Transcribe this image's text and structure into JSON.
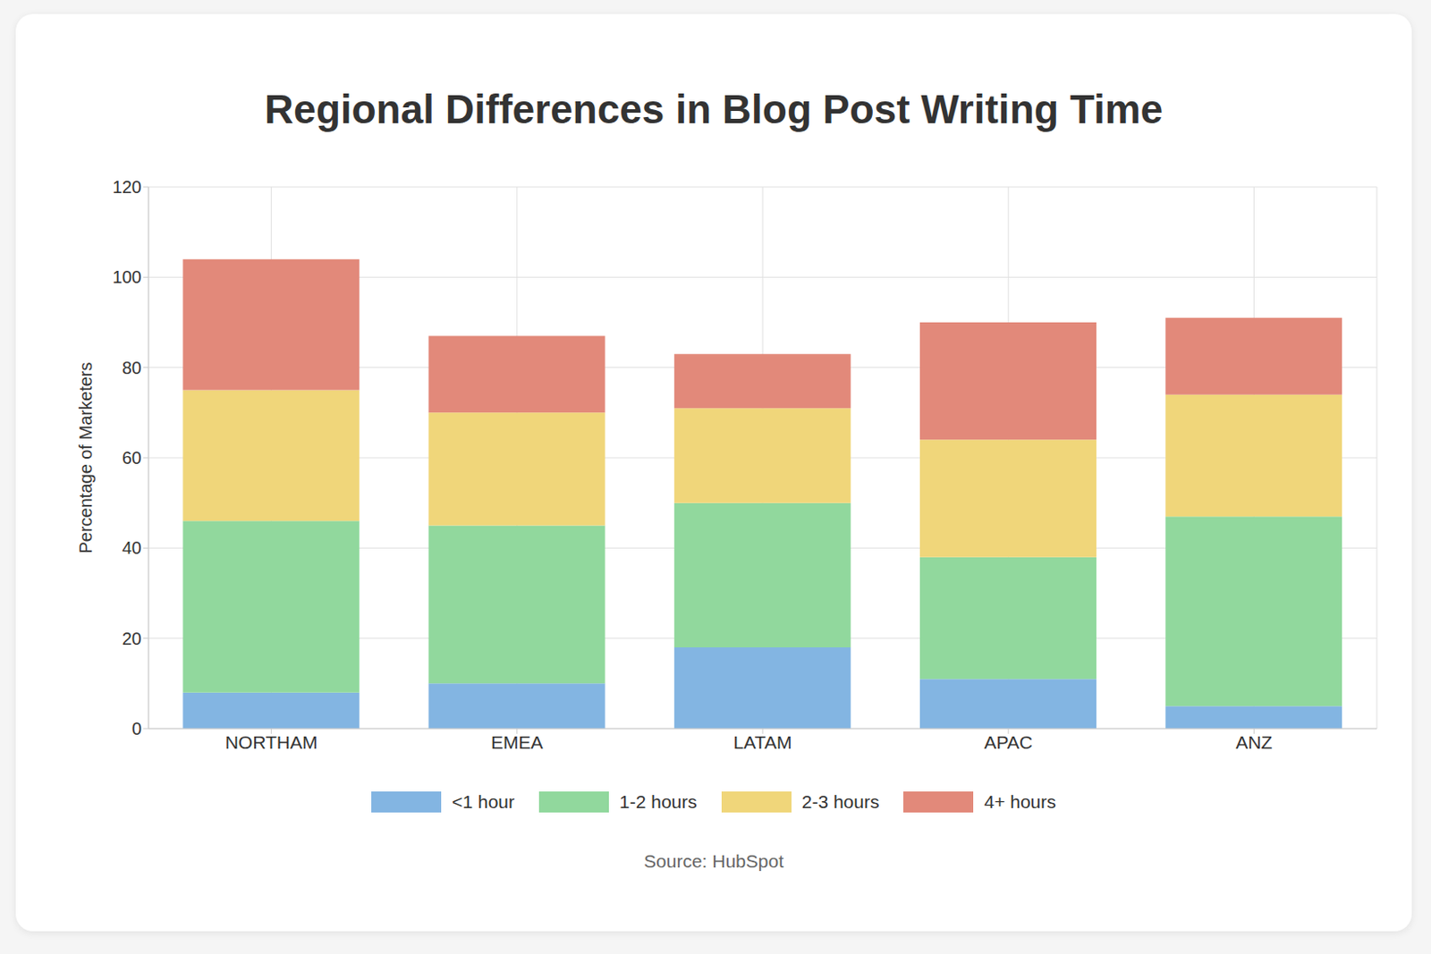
{
  "chart_data": {
    "type": "bar",
    "title": "Regional Differences in Blog Post Writing Time",
    "y_label": "Percentage of Marketers",
    "source": "Source: HubSpot",
    "categories": [
      "NORTHAM",
      "EMEA",
      "LATAM",
      "APAC",
      "ANZ"
    ],
    "series": [
      {
        "name": "<1 hour",
        "color": "#83b5e2",
        "values": [
          8,
          10,
          18,
          11,
          5
        ]
      },
      {
        "name": "1-2 hours",
        "color": "#91d89d",
        "values": [
          38,
          35,
          32,
          27,
          42
        ]
      },
      {
        "name": "2-3 hours",
        "color": "#f0d67a",
        "values": [
          29,
          25,
          21,
          26,
          27
        ]
      },
      {
        "name": "4+ hours",
        "color": "#e2897a",
        "values": [
          29,
          17,
          12,
          26,
          17
        ]
      }
    ],
    "ylim": [
      0,
      120
    ],
    "yticks": [
      0,
      20,
      40,
      60,
      80,
      100,
      120
    ],
    "stacked": true,
    "grid": true,
    "legend": "bottom"
  }
}
